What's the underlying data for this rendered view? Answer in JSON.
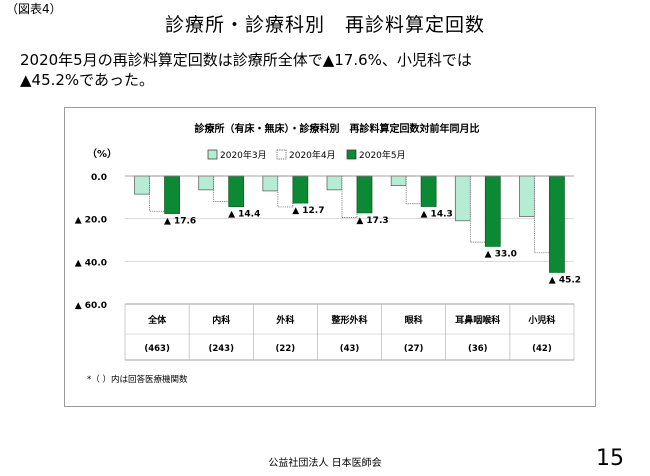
{
  "figure_label": "（図表4）",
  "slide_title": "診療所・診療科別　再診料算定回数",
  "summary": {
    "line1": "2020年5月の再診料算定回数は診療所全体で▲17.6%、小児科では",
    "line2": "▲45.2%であった。"
  },
  "footer_org": "公益社団法人 日本医師会",
  "page_number": "15",
  "colors": {
    "march": "#b6ecd3",
    "april": "#ffffff",
    "may": "#0b8a33"
  },
  "chart_data": {
    "type": "bar",
    "title": "診療所（有床・無床）・診療科別　再診料算定回数対前年同月比",
    "unit_label": "（%）",
    "ylim": [
      0,
      60
    ],
    "y_ticks": [
      "0.0",
      "▲ 20.0",
      "▲ 40.0",
      "▲ 60.0"
    ],
    "categories": [
      "全体",
      "内科",
      "外科",
      "整形外科",
      "眼科",
      "耳鼻咽喉科",
      "小児科"
    ],
    "category_counts": [
      "(463)",
      "(243)",
      "(22)",
      "(43)",
      "(27)",
      "(36)",
      "(42)"
    ],
    "series": [
      {
        "name": "2020年3月",
        "values": [
          8.5,
          6.5,
          7.0,
          6.5,
          4.5,
          21.0,
          19.0
        ]
      },
      {
        "name": "2020年4月",
        "values": [
          16.5,
          12.0,
          14.5,
          19.5,
          13.0,
          31.0,
          36.0
        ]
      },
      {
        "name": "2020年5月",
        "values": [
          17.6,
          14.4,
          12.7,
          17.3,
          14.3,
          33.0,
          45.2
        ]
      }
    ],
    "data_labels": [
      "▲ 17.6",
      "▲ 14.4",
      "▲ 12.7",
      "▲ 17.3",
      "▲ 14.3",
      "▲ 33.0",
      "▲ 45.2"
    ],
    "note": "*（ ）内は回答医療機関数",
    "legend_position": "top",
    "grid": true
  }
}
